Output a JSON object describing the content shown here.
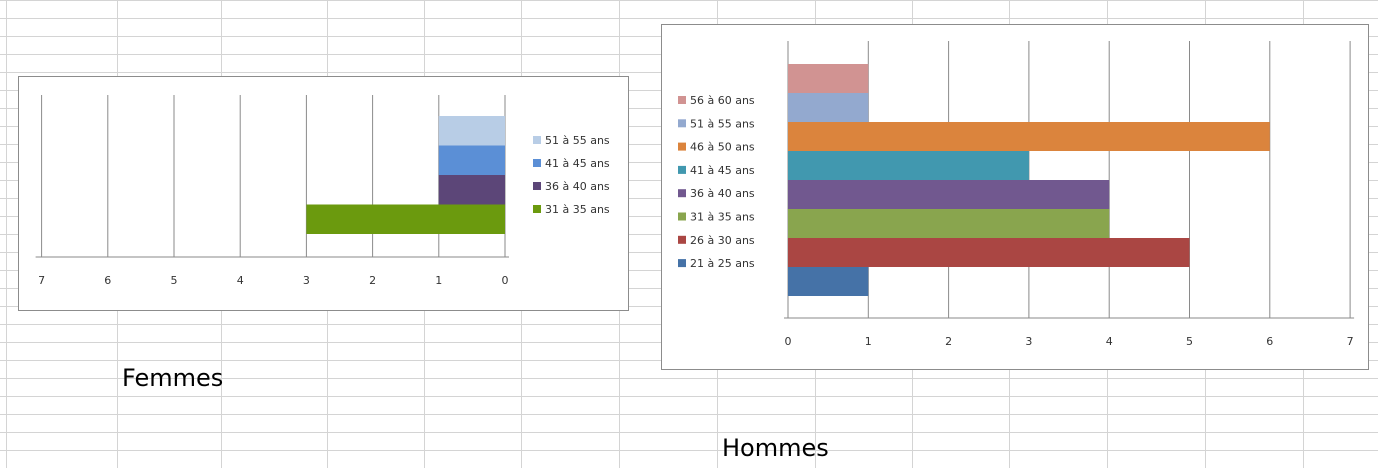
{
  "labels": {
    "femmes": "Femmes",
    "hommes": "Hommes"
  },
  "chart_data": [
    {
      "type": "bar",
      "orientation": "horizontal-reversed",
      "grid": true,
      "legend_position": "right",
      "xlim": [
        0,
        7
      ],
      "x_ticks": [
        "7",
        "6",
        "5",
        "4",
        "3",
        "2",
        "1",
        "0"
      ],
      "series": [
        {
          "name": "31 à 35 ans",
          "value": 3,
          "color": "#6b9a0e"
        },
        {
          "name": "36 à 40 ans",
          "value": 1,
          "color": "#5c4678"
        },
        {
          "name": "41 à 45 ans",
          "value": 1,
          "color": "#5b8fd6"
        },
        {
          "name": "51 à 55 ans",
          "value": 1,
          "color": "#b8cde6"
        }
      ]
    },
    {
      "type": "bar",
      "orientation": "horizontal",
      "grid": true,
      "legend_position": "left",
      "xlim": [
        0,
        7
      ],
      "x_ticks": [
        "0",
        "1",
        "2",
        "3",
        "4",
        "5",
        "6",
        "7"
      ],
      "series": [
        {
          "name": "21 à 25 ans",
          "value": 1,
          "color": "#4572a7"
        },
        {
          "name": "26 à 30 ans",
          "value": 5,
          "color": "#aa4643"
        },
        {
          "name": "31 à 35 ans",
          "value": 4,
          "color": "#89a54e"
        },
        {
          "name": "36 à 40 ans",
          "value": 4,
          "color": "#71588f"
        },
        {
          "name": "41 à 45 ans",
          "value": 3,
          "color": "#4198af"
        },
        {
          "name": "46 à 50 ans",
          "value": 6,
          "color": "#db843d"
        },
        {
          "name": "51 à 55 ans",
          "value": 1,
          "color": "#93a9cf"
        },
        {
          "name": "56 à 60 ans",
          "value": 1,
          "color": "#d19392"
        }
      ]
    }
  ]
}
